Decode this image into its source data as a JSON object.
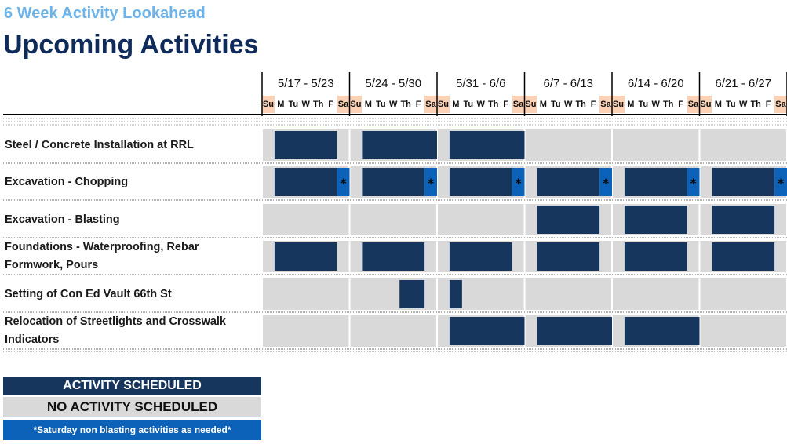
{
  "header": {
    "subtitle": "6 Week Activity Lookahead",
    "title": "Upcoming Activities"
  },
  "weeks": [
    "5/17 - 5/23",
    "5/24 - 5/30",
    "5/31 - 6/6",
    "6/7 - 6/13",
    "6/14 - 6/20",
    "6/21 - 6/27"
  ],
  "days": [
    "Su",
    "M",
    "Tu",
    "W",
    "Th",
    "F",
    "Sa"
  ],
  "rows": [
    {
      "label": "Steel / Concrete Installation at RRL",
      "weeks": [
        [
          1,
          2,
          3,
          4,
          5
        ],
        [
          1,
          2,
          3,
          4,
          5,
          6
        ],
        [
          1,
          2,
          3,
          4,
          5,
          6
        ],
        [],
        [],
        []
      ],
      "saturday_asterisk": false
    },
    {
      "label": "Excavation - Chopping",
      "weeks": [
        [
          1,
          2,
          3,
          4,
          5
        ],
        [
          1,
          2,
          3,
          4,
          5
        ],
        [
          1,
          2,
          3,
          4,
          5
        ],
        [
          1,
          2,
          3,
          4,
          5
        ],
        [
          1,
          2,
          3,
          4,
          5
        ],
        [
          1,
          2,
          3,
          4,
          5
        ]
      ],
      "saturday_asterisk": true
    },
    {
      "label": "Excavation - Blasting",
      "weeks": [
        [],
        [],
        [],
        [
          1,
          2,
          3,
          4,
          5
        ],
        [
          1,
          2,
          3,
          4,
          5
        ],
        [
          1,
          2,
          3,
          4,
          5
        ]
      ],
      "saturday_asterisk": false
    },
    {
      "label": "Foundations - Waterproofing, Rebar Formwork, Pours",
      "weeks": [
        [
          1,
          2,
          3,
          4,
          5
        ],
        [
          1,
          2,
          3,
          4,
          5
        ],
        [
          1,
          2,
          3,
          4,
          5
        ],
        [
          1,
          2,
          3,
          4,
          5
        ],
        [
          1,
          2,
          3,
          4,
          5
        ],
        [
          1,
          2,
          3,
          4,
          5
        ]
      ],
      "saturday_asterisk": false
    },
    {
      "label": "Setting of Con Ed Vault 66th St",
      "weeks": [
        [],
        [
          4,
          5
        ],
        [
          1
        ],
        [],
        [],
        []
      ],
      "saturday_asterisk": false
    },
    {
      "label": "Relocation of Streetlights and Crosswalk Indicators",
      "weeks": [
        [],
        [],
        [
          1,
          2,
          3,
          4,
          5,
          6
        ],
        [
          1,
          2,
          3,
          4,
          5,
          6
        ],
        [
          1,
          2,
          3,
          4,
          5,
          6
        ],
        []
      ],
      "saturday_asterisk": false
    }
  ],
  "asterisk_symbol": "*",
  "legend": {
    "scheduled": "ACTIVITY SCHEDULED",
    "none": "NO ACTIVITY SCHEDULED",
    "saturday": "*Saturday non blasting activities as needed*"
  },
  "colors": {
    "scheduled": "#17365d",
    "empty": "#d9d9d9",
    "saturday": "#0b62b8",
    "weekend_header": "#fbd2b5",
    "subtitle": "#6cb4ea",
    "title": "#0f2b5b"
  }
}
